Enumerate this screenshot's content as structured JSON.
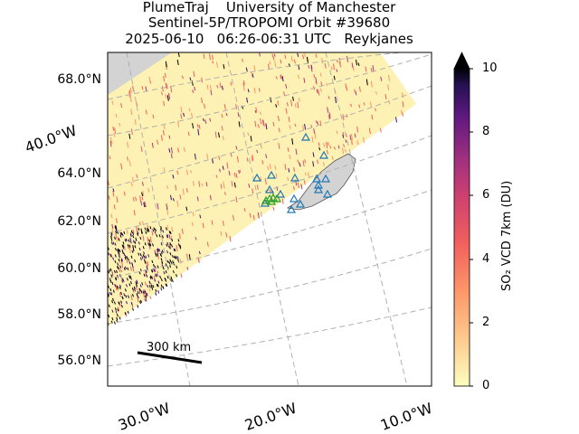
{
  "title": {
    "line1": "PlumeTraj    University of Manchester",
    "line2": "Sentinel-5P/TROPOMI Orbit #39680",
    "line3": "2025-06-10   06:26-06:31 UTC   Reykjanes"
  },
  "map": {
    "lat_labels": [
      "68.0°N",
      "64.0°N",
      "62.0°N",
      "60.0°N",
      "58.0°N",
      "56.0°N"
    ],
    "lon_left_label": "40.0°W",
    "lon_bottom_labels": [
      "30.0°W",
      "20.0°W",
      "10.0°W"
    ],
    "scale_bar_label": "300 km",
    "land_color": "#d3d3d3",
    "grid_color": "#b0b0b0",
    "volcano_marker_color": "#1f77b4",
    "plume_marker_color": "#2ca02c"
  },
  "colorbar": {
    "label": "SO₂ VCD 7km (DU)",
    "ticks": [
      "10",
      "8",
      "6",
      "4",
      "2",
      "0"
    ],
    "range": [
      0,
      10
    ],
    "colormap": "magma_r",
    "extend": "max"
  }
}
